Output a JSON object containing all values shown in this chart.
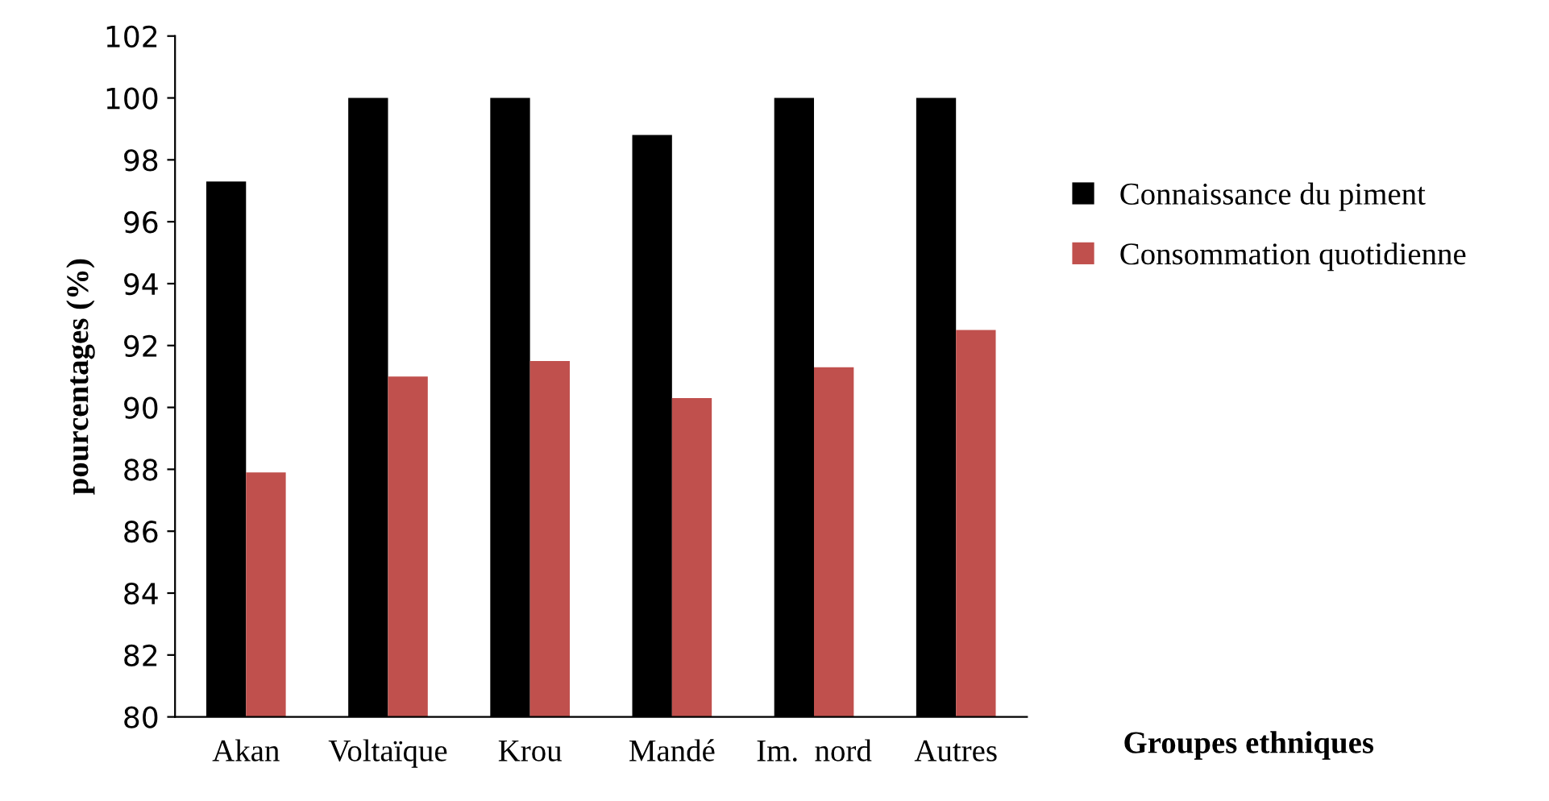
{
  "chart_data": {
    "type": "bar",
    "xlabel": "Groupes ethniques",
    "ylabel": "pourcentages (%)",
    "categories": [
      "Akan",
      "Voltaïque",
      "Krou",
      "Mandé",
      "Im.  nord",
      "Autres"
    ],
    "series": [
      {
        "name": "Connaissance du piment",
        "color": "#000000",
        "values": [
          97.3,
          100,
          100,
          98.8,
          100,
          100
        ]
      },
      {
        "name": "Consommation quotidienne",
        "color": "#c0504d",
        "values": [
          87.9,
          91.0,
          91.5,
          90.3,
          91.3,
          92.5
        ]
      }
    ],
    "ylim": [
      80,
      102
    ],
    "yticks": [
      80,
      82,
      84,
      86,
      88,
      90,
      92,
      94,
      96,
      98,
      100,
      102
    ],
    "grid": false,
    "legend": "right"
  }
}
